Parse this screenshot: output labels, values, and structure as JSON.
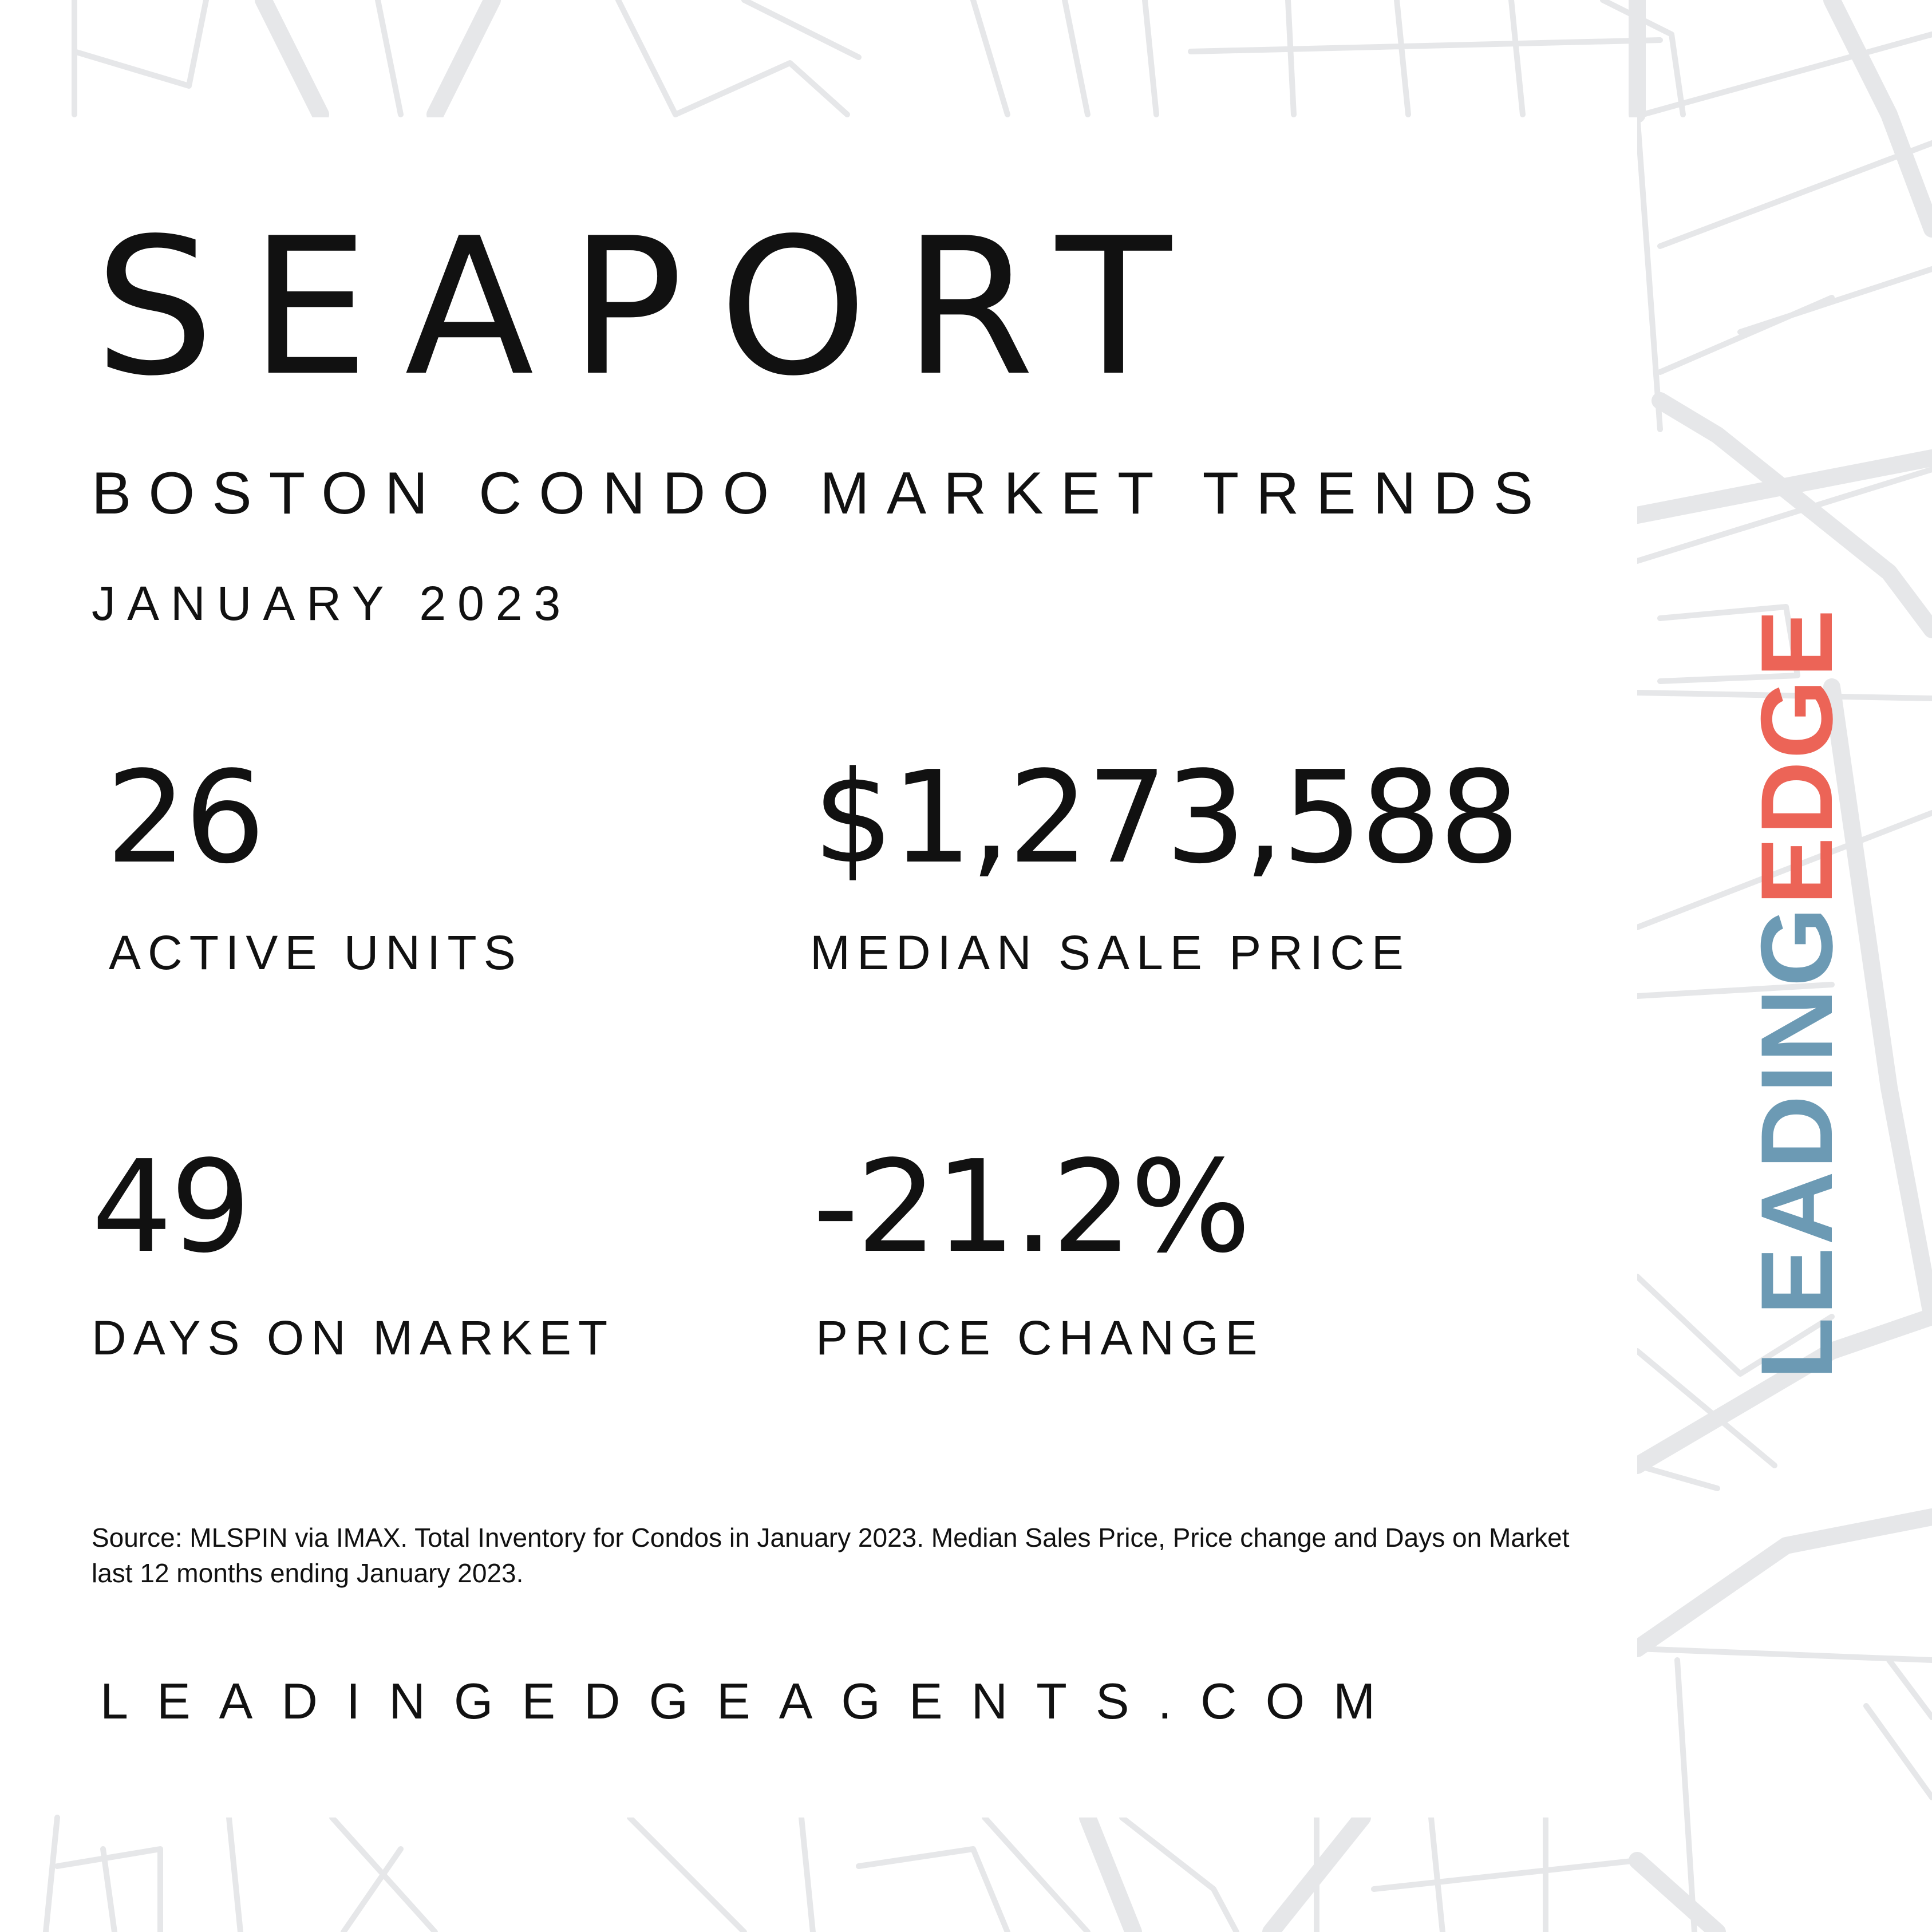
{
  "title": "SEAPORT",
  "subtitle": "BOSTON CONDO MARKET TRENDS",
  "month": "JANUARY 2023",
  "stats": {
    "active_units": {
      "value": "26",
      "label": "ACTIVE UNITS"
    },
    "median_sale_price": {
      "value": "$1,273,588",
      "label": "MEDIAN SALE PRICE"
    },
    "days_on_market": {
      "value": "49",
      "label": "DAYS ON MARKET"
    },
    "price_change": {
      "value": "-21.2%",
      "label": "PRICE CHANGE"
    }
  },
  "source": "Source: MLSPIN via IMAX. Total Inventory for Condos in January 2023. Median Sales Price, Price change and Days on Market last 12 months ending January 2023.",
  "website": "LEADINGEDGEAGENTS.COM",
  "brand": {
    "part1": "LEADING",
    "part2": "EDGE",
    "color1": "#6c9ab4",
    "color2": "#ec6457"
  },
  "colors": {
    "map_lines": "#e6e7e9",
    "text": "#111111",
    "background": "#ffffff"
  }
}
